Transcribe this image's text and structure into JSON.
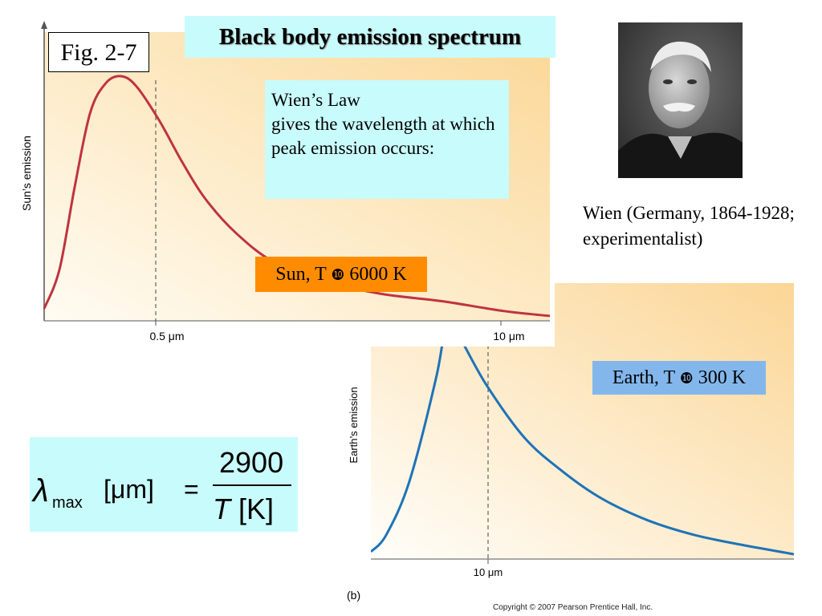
{
  "fig_label": "Fig. 2-7",
  "title": "Black body emission spectrum",
  "wien_law": {
    "line1": "Wien’s Law",
    "line2": "gives the wavelength at which peak emission occurs:"
  },
  "sun_label": {
    "prefix": "Sun, T",
    "symbol": "❿",
    "value": "6000 K"
  },
  "earth_label": {
    "prefix": "Earth, T",
    "symbol": "❿",
    "value": "300 K"
  },
  "caption": "Wien (Germany, 1864-1928; experimentalist)",
  "formula": {
    "lambda": "λ",
    "sub": "max",
    "unit": "[μm]",
    "equals": "=",
    "numerator": "2900",
    "denominator_var": "T",
    "denominator_unit": "[K]"
  },
  "copyright": "Copyright © 2007 Pearson Prentice Hall, Inc.",
  "colors": {
    "sun_curve": "#c0333f",
    "earth_curve": "#1f73b7",
    "box_cyan": "#c8fbfc",
    "sun_box": "#ff8c00",
    "earth_box": "#83b7ec"
  },
  "chart_data": [
    {
      "type": "line",
      "ylabel": "Sun’s emission",
      "xlabel": "",
      "xticks": [
        "0.5 μm",
        "10 μm"
      ],
      "peak_label": "0.5 μm",
      "series": [
        {
          "x": [
            0.0,
            0.1,
            0.2,
            0.3,
            0.4,
            0.5,
            0.6,
            0.75,
            0.9,
            1.05,
            1.25,
            1.5,
            1.85,
            2.2,
            2.6,
            3.0,
            3.3
          ],
          "values": [
            0.05,
            0.21,
            0.55,
            0.85,
            0.97,
            1.0,
            0.96,
            0.82,
            0.65,
            0.5,
            0.36,
            0.24,
            0.16,
            0.11,
            0.08,
            0.04,
            0.02
          ]
        }
      ]
    },
    {
      "type": "line",
      "ylabel": "Earth’s emission",
      "xlabel": "",
      "xticks": [
        "10 μm"
      ],
      "peak_label": "10 μm",
      "panel_label": "(b)",
      "series": [
        {
          "x": [
            0.0,
            0.2,
            0.5,
            0.85,
            1.0,
            1.15,
            1.5,
            2.0,
            2.5,
            3.0,
            3.6,
            4.2,
            4.8,
            5.5
          ],
          "values": [
            0.03,
            0.1,
            0.32,
            0.75,
            1.0,
            0.92,
            0.72,
            0.5,
            0.36,
            0.25,
            0.16,
            0.1,
            0.06,
            0.02
          ]
        }
      ]
    }
  ]
}
